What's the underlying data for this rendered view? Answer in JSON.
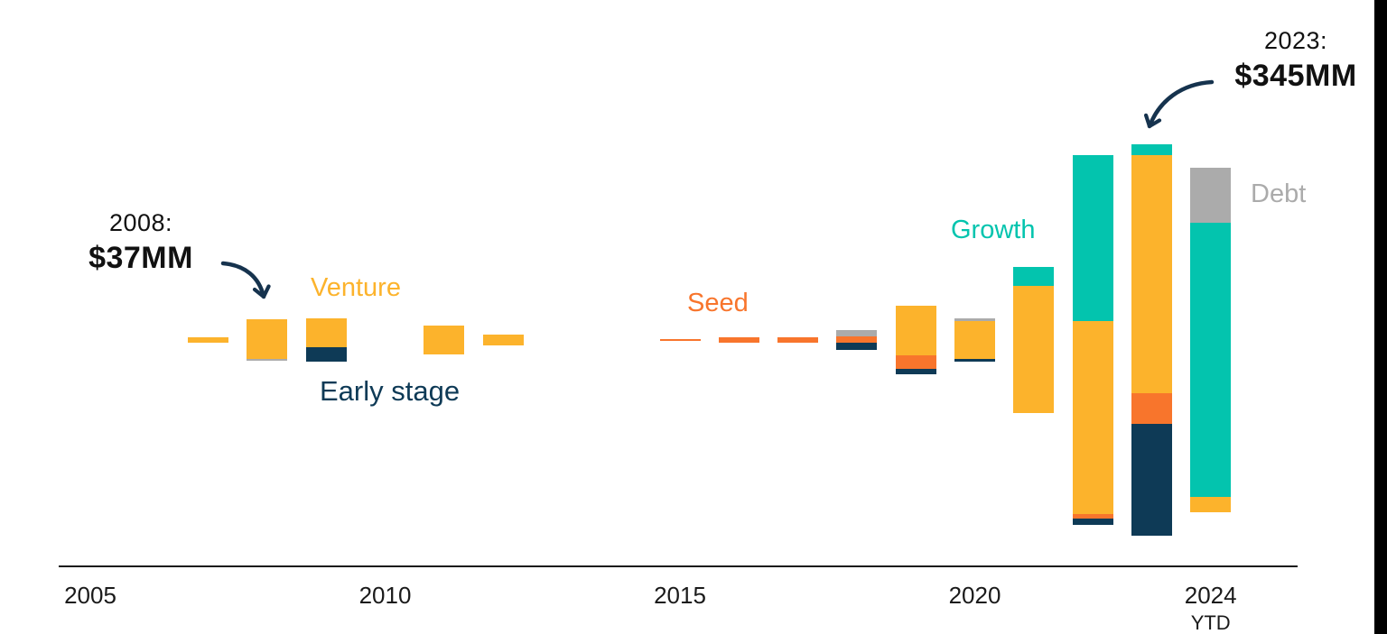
{
  "page": {
    "background": "#ffffff",
    "right_edge_bar_color": "#000000",
    "axis_color": "#1a1a1a",
    "annotation_text_color": "#111111",
    "arrow_color": "#16334e"
  },
  "chart_data": {
    "type": "bar",
    "subtype": "stacked-bars-centered-on-midline",
    "unit": "$MM",
    "title": "",
    "xlabel": "",
    "ylabel": "",
    "grid": false,
    "legend_position": "inline-labels",
    "series": [
      {
        "id": "venture",
        "label": "Venture",
        "color": "#FCB32C"
      },
      {
        "id": "early",
        "label": "Early stage",
        "color": "#0E3A56"
      },
      {
        "id": "seed",
        "label": "Seed",
        "color": "#F8752C"
      },
      {
        "id": "growth",
        "label": "Growth",
        "color": "#03C4AE"
      },
      {
        "id": "debt",
        "label": "Debt",
        "color": "#ABABAB"
      }
    ],
    "bars": [
      {
        "year": 2007,
        "total": 5,
        "segments": [
          {
            "series": "venture",
            "value": 5
          }
        ]
      },
      {
        "year": 2008,
        "total": 37,
        "segments": [
          {
            "series": "venture",
            "value": 35
          },
          {
            "series": "debt",
            "value": 2
          }
        ]
      },
      {
        "year": 2009,
        "total": 38,
        "segments": [
          {
            "series": "venture",
            "value": 25
          },
          {
            "series": "early",
            "value": 13
          }
        ]
      },
      {
        "year": 2011,
        "total": 25,
        "segments": [
          {
            "series": "venture",
            "value": 25
          }
        ]
      },
      {
        "year": 2012,
        "total": 9,
        "segments": [
          {
            "series": "venture",
            "value": 9
          }
        ]
      },
      {
        "year": 2015,
        "total": 2,
        "segments": [
          {
            "series": "seed",
            "value": 2
          }
        ]
      },
      {
        "year": 2016,
        "total": 5,
        "segments": [
          {
            "series": "seed",
            "value": 5
          }
        ]
      },
      {
        "year": 2017,
        "total": 5,
        "segments": [
          {
            "series": "seed",
            "value": 5
          }
        ]
      },
      {
        "year": 2018,
        "total": 18,
        "segments": [
          {
            "series": "debt",
            "value": 6
          },
          {
            "series": "seed",
            "value": 5
          },
          {
            "series": "early",
            "value": 7
          }
        ]
      },
      {
        "year": 2019,
        "total": 61,
        "segments": [
          {
            "series": "venture",
            "value": 44
          },
          {
            "series": "seed",
            "value": 12
          },
          {
            "series": "early",
            "value": 5
          }
        ]
      },
      {
        "year": 2020,
        "total": 38,
        "segments": [
          {
            "series": "debt",
            "value": 2
          },
          {
            "series": "venture",
            "value": 34
          },
          {
            "series": "early",
            "value": 2
          }
        ]
      },
      {
        "year": 2021,
        "total": 128,
        "segments": [
          {
            "series": "growth",
            "value": 16
          },
          {
            "series": "venture",
            "value": 112
          }
        ]
      },
      {
        "year": 2022,
        "total": 326,
        "segments": [
          {
            "series": "growth",
            "value": 146
          },
          {
            "series": "venture",
            "value": 170
          },
          {
            "series": "seed",
            "value": 4
          },
          {
            "series": "early",
            "value": 6
          }
        ]
      },
      {
        "year": 2023,
        "total": 345,
        "segments": [
          {
            "series": "growth",
            "value": 10
          },
          {
            "series": "venture",
            "value": 209
          },
          {
            "series": "seed",
            "value": 27
          },
          {
            "series": "early",
            "value": 99
          }
        ]
      },
      {
        "year": 2024,
        "total": 303,
        "segments": [
          {
            "series": "debt",
            "value": 48
          },
          {
            "series": "growth",
            "value": 242
          },
          {
            "series": "venture",
            "value": 13
          }
        ]
      }
    ],
    "x_ticks": [
      {
        "year": 2005,
        "label": "2005"
      },
      {
        "year": 2010,
        "label": "2010"
      },
      {
        "year": 2015,
        "label": "2015"
      },
      {
        "year": 2020,
        "label": "2020"
      },
      {
        "year": 2024,
        "label": "2024",
        "sublabel": "YTD"
      }
    ],
    "annotations": [
      {
        "id": "y2008",
        "line1": "2008:",
        "line2": "$37MM"
      },
      {
        "id": "y2023",
        "line1": "2023:",
        "line2": "$345MM"
      }
    ]
  }
}
